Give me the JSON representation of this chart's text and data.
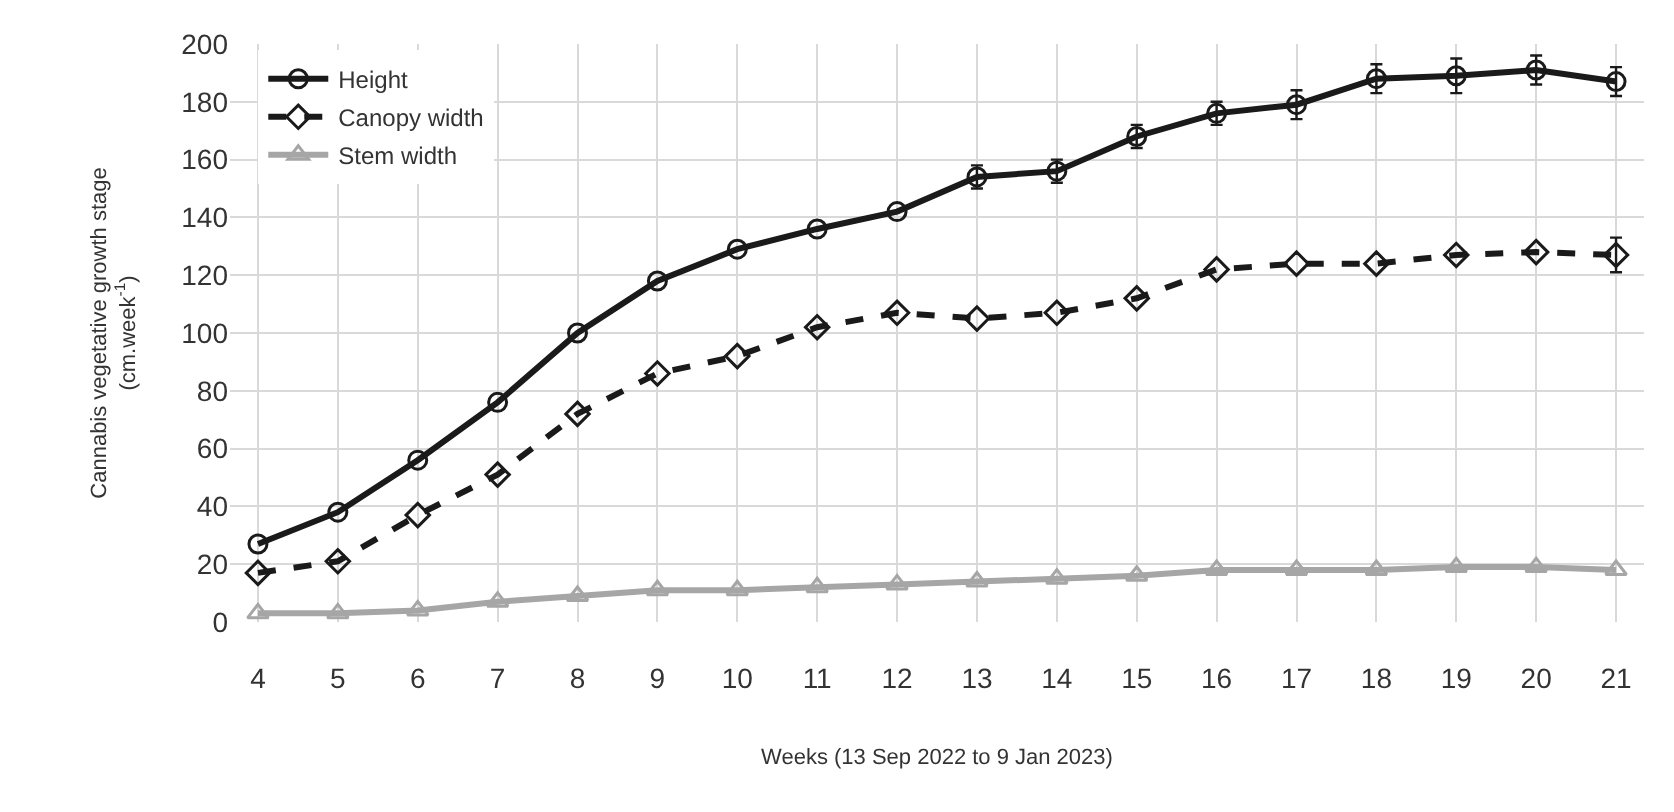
{
  "chart_data": {
    "type": "line",
    "xlabel": "Weeks (13 Sep 2022 to 9 Jan 2023)",
    "ylabel": "Cannabis vegetative growth stage\n(cm.week$^{-1}$)",
    "categories": [
      "4",
      "5",
      "6",
      "7",
      "8",
      "9",
      "10",
      "11",
      "12",
      "13",
      "14",
      "15",
      "16",
      "17",
      "18",
      "19",
      "20",
      "21"
    ],
    "series": [
      {
        "name": "Height",
        "color": "#1a1a1a",
        "marker": "circle",
        "line_style": "solid",
        "values": [
          27,
          38,
          56,
          76,
          100,
          118,
          129,
          136,
          142,
          154,
          156,
          168,
          176,
          179,
          188,
          189,
          191,
          187
        ],
        "errors": [
          null,
          null,
          null,
          null,
          null,
          null,
          null,
          null,
          null,
          4,
          4,
          4,
          4,
          5,
          5,
          6,
          5,
          5
        ]
      },
      {
        "name": "Canopy width",
        "color": "#1a1a1a",
        "marker": "diamond",
        "line_style": "dashed",
        "values": [
          17,
          21,
          37,
          51,
          72,
          86,
          92,
          102,
          107,
          105,
          107,
          112,
          122,
          124,
          124,
          127,
          128,
          127
        ],
        "errors": [
          null,
          null,
          null,
          null,
          null,
          null,
          null,
          null,
          null,
          null,
          null,
          null,
          null,
          null,
          null,
          null,
          null,
          6
        ]
      },
      {
        "name": "Stem width",
        "color": "#a6a6a6",
        "marker": "triangle",
        "line_style": "solid",
        "values": [
          3,
          3,
          4,
          7,
          9,
          11,
          11,
          12,
          13,
          14,
          15,
          16,
          18,
          18,
          18,
          19,
          19,
          18
        ]
      }
    ],
    "ylim": [
      0,
      200
    ],
    "yticks": [
      0,
      20,
      40,
      60,
      80,
      100,
      120,
      140,
      160,
      180,
      200
    ],
    "grid": true,
    "legend": "top left"
  }
}
